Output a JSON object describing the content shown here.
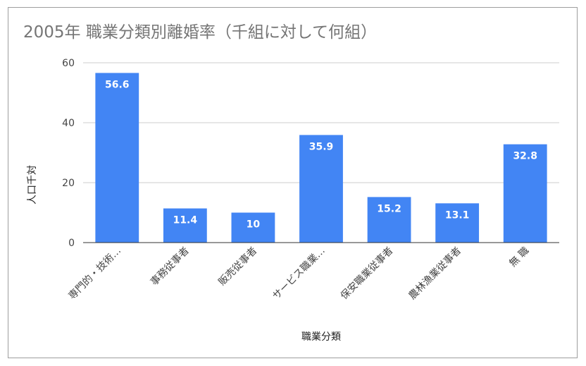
{
  "chart_data": {
    "type": "bar",
    "title": "2005年 職業分類別離婚率（千組に対して何組）",
    "xlabel": "職業分類",
    "ylabel": "人口千対",
    "categories": [
      "専門的・技術…",
      "事務従事者",
      "販売従事者",
      "サービス職業…",
      "保安職業従事者",
      "農林漁業従事者",
      "無 職"
    ],
    "values": [
      56.6,
      11.4,
      10,
      35.9,
      15.2,
      13.1,
      32.8
    ],
    "value_labels": [
      "56.6",
      "11.4",
      "10",
      "35.9",
      "15.2",
      "13.1",
      "32.8"
    ],
    "ylim": [
      0,
      60
    ],
    "yticks": [
      0,
      20,
      40,
      60
    ],
    "ytick_labels": [
      "0",
      "20",
      "40",
      "60"
    ],
    "grid": true,
    "legend": "none",
    "bar_color": "#4285f4"
  }
}
